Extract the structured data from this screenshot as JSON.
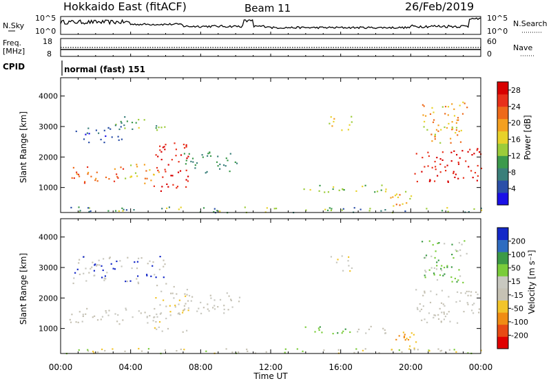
{
  "header": {
    "station": "Hokkaido East (fitACF)",
    "beam": "Beam 11",
    "date": "26/Feb/2019"
  },
  "panels": {
    "noise": {
      "left_label": "N.Sky",
      "right_label": "N.Search",
      "left_ticks": [
        "10^5",
        "10^0"
      ],
      "right_ticks": [
        "10^5",
        "10^0"
      ]
    },
    "freq": {
      "left_label_1": "Freq.",
      "left_label_2": "[MHz]",
      "right_label": "Nave",
      "left_ticks": [
        "18",
        "8"
      ],
      "right_ticks": [
        "60",
        "0"
      ]
    },
    "cpid": {
      "label": "CPID",
      "mode_text": "normal (fast) 151"
    }
  },
  "colors": {
    "power_scale": [
      "#1a10e6",
      "#2b4fa8",
      "#3a7f7a",
      "#3c9a4c",
      "#9ccc3a",
      "#e8d22a",
      "#f4a020",
      "#ee6a1a",
      "#e8301a",
      "#d80000"
    ],
    "velocity_scale": [
      "#1428c8",
      "#2f6cc0",
      "#3c9a46",
      "#7acc3a",
      "#c8c8c0",
      "#c6c2b4",
      "#f2c42a",
      "#f08c14",
      "#e84a14",
      "#e00000"
    ]
  },
  "chart_data": [
    {
      "type": "heatmap",
      "name": "power",
      "xlabel": "",
      "ylabel": "Slant Range [km]",
      "xlim": [
        0,
        24
      ],
      "ylim": [
        180,
        4600
      ],
      "xticks": [
        "00:00",
        "04:00",
        "08:00",
        "12:00",
        "16:00",
        "20:00",
        "00:00"
      ],
      "yticks": [
        1000,
        2000,
        3000,
        4000
      ],
      "colorbar": {
        "label": "Power [dB]",
        "ticks": [
          "4",
          "8",
          "12",
          "16",
          "20",
          "24",
          "28"
        ],
        "range": [
          0,
          30
        ]
      },
      "regions": [
        {
          "t0": 0.5,
          "t1": 3.8,
          "r0": 1150,
          "r1": 1700,
          "v0": 20,
          "v1": 26
        },
        {
          "t0": 3.5,
          "t1": 5.6,
          "r0": 1150,
          "r1": 1800,
          "v0": 14,
          "v1": 22
        },
        {
          "t0": 5.3,
          "t1": 7.3,
          "r0": 900,
          "r1": 2500,
          "v0": 24,
          "v1": 30
        },
        {
          "t0": 0.5,
          "t1": 3.5,
          "r0": 2500,
          "r1": 3000,
          "v0": 2,
          "v1": 8
        },
        {
          "t0": 3.0,
          "t1": 6.0,
          "r0": 2900,
          "r1": 3400,
          "v0": 5,
          "v1": 16
        },
        {
          "t0": 7.0,
          "t1": 10.2,
          "r0": 1500,
          "r1": 2200,
          "v0": 6,
          "v1": 12
        },
        {
          "t0": 15.2,
          "t1": 16.6,
          "r0": 2900,
          "r1": 3400,
          "v0": 12,
          "v1": 22
        },
        {
          "t0": 13.5,
          "t1": 19.3,
          "r0": 850,
          "r1": 1100,
          "v0": 10,
          "v1": 18
        },
        {
          "t0": 18.5,
          "t1": 20.4,
          "r0": 400,
          "r1": 900,
          "v0": 14,
          "v1": 22
        },
        {
          "t0": 20.2,
          "t1": 24.0,
          "r0": 1200,
          "r1": 2300,
          "v0": 24,
          "v1": 30
        },
        {
          "t0": 20.6,
          "t1": 23.2,
          "r0": 2400,
          "r1": 3900,
          "v0": 12,
          "v1": 24
        },
        {
          "t0": 0.0,
          "t1": 24.0,
          "r0": 200,
          "r1": 380,
          "v0": 4,
          "v1": 18
        }
      ]
    },
    {
      "type": "heatmap",
      "name": "velocity",
      "xlabel": "Time UT",
      "ylabel": "Slant Range [km]",
      "xlim": [
        0,
        24
      ],
      "ylim": [
        180,
        4600
      ],
      "xticks": [
        "00:00",
        "04:00",
        "08:00",
        "12:00",
        "16:00",
        "20:00",
        "00:00"
      ],
      "yticks": [
        1000,
        2000,
        3000,
        4000
      ],
      "colorbar": {
        "label": "Velocity [m s⁻¹]",
        "ticks": [
          "200",
          "100",
          "50",
          "15",
          "-15",
          "-50",
          "-100",
          "-200"
        ]
      },
      "regions": [
        {
          "t0": 0.5,
          "t1": 5.6,
          "r0": 1150,
          "r1": 1700,
          "c": [
            4,
            5
          ]
        },
        {
          "t0": 5.3,
          "t1": 7.3,
          "r0": 900,
          "r1": 2500,
          "c": [
            4,
            5,
            6
          ]
        },
        {
          "t0": 0.5,
          "t1": 6.0,
          "r0": 2500,
          "r1": 3400,
          "c": [
            4,
            5,
            0
          ]
        },
        {
          "t0": 7.0,
          "t1": 10.2,
          "r0": 1500,
          "r1": 2200,
          "c": [
            4,
            5
          ]
        },
        {
          "t0": 15.2,
          "t1": 16.6,
          "r0": 2900,
          "r1": 3400,
          "c": [
            4,
            6
          ]
        },
        {
          "t0": 13.5,
          "t1": 16.8,
          "r0": 850,
          "r1": 1100,
          "c": [
            3,
            2
          ]
        },
        {
          "t0": 16.8,
          "t1": 19.3,
          "r0": 850,
          "r1": 1100,
          "c": [
            4,
            5
          ]
        },
        {
          "t0": 18.5,
          "t1": 20.4,
          "r0": 400,
          "r1": 900,
          "c": [
            6,
            7
          ]
        },
        {
          "t0": 20.2,
          "t1": 24.0,
          "r0": 1200,
          "r1": 2300,
          "c": [
            4,
            5
          ]
        },
        {
          "t0": 20.6,
          "t1": 23.2,
          "r0": 2400,
          "r1": 3900,
          "c": [
            4,
            3,
            2
          ]
        },
        {
          "t0": 0.0,
          "t1": 24.0,
          "r0": 200,
          "r1": 380,
          "c": [
            6,
            5,
            3
          ]
        }
      ]
    }
  ]
}
